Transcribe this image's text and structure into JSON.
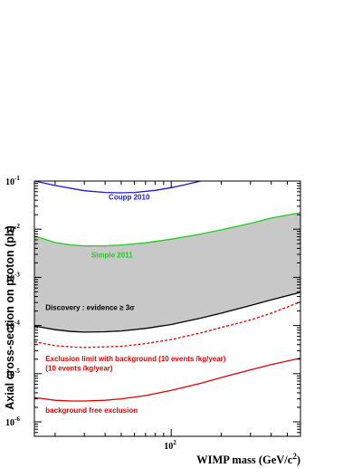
{
  "chart_data": {
    "type": "line",
    "title": "",
    "xlabel": "WIMP mass (GeV/c^2)",
    "xlabel_main": "WIMP mass (GeV/c",
    "xlabel_sup": "2",
    "xlabel_end": ")",
    "ylabel": "Axial cross-section on proton (pb)",
    "xscale": "log",
    "yscale": "log",
    "xlim": [
      15,
      600
    ],
    "ylim": [
      5e-07,
      0.1
    ],
    "grid": false,
    "legend": "none",
    "x_tick_labels": [
      {
        "x": 100,
        "base": "10",
        "exp": "2"
      }
    ],
    "y_tick_labels": [
      {
        "y": 1e-06,
        "base": "10",
        "exp": "-6"
      },
      {
        "y": 1e-05,
        "base": "10",
        "exp": "-5"
      },
      {
        "y": 0.0001,
        "base": "10",
        "exp": "-4"
      },
      {
        "y": 0.001,
        "base": "10",
        "exp": "-3"
      },
      {
        "y": 0.01,
        "base": "10",
        "exp": "-2"
      },
      {
        "y": 0.1,
        "base": "10",
        "exp": "-1"
      }
    ],
    "series": [
      {
        "name": "Coupp 2010",
        "color": "#1a1acc",
        "style": "solid",
        "points": [
          [
            15,
            0.1
          ],
          [
            20,
            0.081
          ],
          [
            30,
            0.063
          ],
          [
            40,
            0.058
          ],
          [
            50,
            0.057
          ],
          [
            60,
            0.058
          ],
          [
            80,
            0.064
          ],
          [
            100,
            0.073
          ],
          [
            120,
            0.083
          ],
          [
            140,
            0.094
          ],
          [
            150,
            0.1
          ]
        ]
      },
      {
        "name": "Simple 2011",
        "color": "#22cc22",
        "style": "solid",
        "points": [
          [
            15,
            0.0072
          ],
          [
            20,
            0.0053
          ],
          [
            25,
            0.0047
          ],
          [
            30,
            0.0045
          ],
          [
            40,
            0.0045
          ],
          [
            50,
            0.0047
          ],
          [
            70,
            0.0052
          ],
          [
            100,
            0.0062
          ],
          [
            150,
            0.0079
          ],
          [
            200,
            0.0097
          ],
          [
            300,
            0.0132
          ],
          [
            400,
            0.017
          ],
          [
            600,
            0.022
          ]
        ]
      },
      {
        "name": "Discovery : evidence ≥ 3σ",
        "color": "#000000",
        "style": "solid",
        "points": [
          [
            15,
            9.8e-05
          ],
          [
            20,
            8.2e-05
          ],
          [
            25,
            7.5e-05
          ],
          [
            30,
            7.3e-05
          ],
          [
            40,
            7.4e-05
          ],
          [
            50,
            7.7e-05
          ],
          [
            70,
            8.7e-05
          ],
          [
            100,
            0.000105
          ],
          [
            150,
            0.000142
          ],
          [
            200,
            0.00018
          ],
          [
            300,
            0.00026
          ],
          [
            400,
            0.00034
          ],
          [
            600,
            0.00049
          ]
        ]
      },
      {
        "name": "Exclusion limit with background (10 events /kg/year)",
        "color": "#dd0000",
        "style": "dashed",
        "points": [
          [
            15,
            4.6e-05
          ],
          [
            20,
            3.8e-05
          ],
          [
            25,
            3.6e-05
          ],
          [
            30,
            3.5e-05
          ],
          [
            40,
            3.6e-05
          ],
          [
            50,
            3.7e-05
          ],
          [
            70,
            4.2e-05
          ],
          [
            100,
            5.1e-05
          ],
          [
            150,
            7e-05
          ],
          [
            200,
            9.1e-05
          ],
          [
            300,
            0.00013
          ],
          [
            400,
            0.00018
          ],
          [
            600,
            0.00031
          ]
        ]
      },
      {
        "name": "background free exclusion",
        "color": "#dd0000",
        "style": "solid",
        "points": [
          [
            15,
            3.2e-06
          ],
          [
            20,
            2.8e-06
          ],
          [
            25,
            2.7e-06
          ],
          [
            30,
            2.7e-06
          ],
          [
            40,
            2.8e-06
          ],
          [
            50,
            3e-06
          ],
          [
            70,
            3.5e-06
          ],
          [
            100,
            4.5e-06
          ],
          [
            150,
            6.3e-06
          ],
          [
            200,
            8.3e-06
          ],
          [
            300,
            1.2e-05
          ],
          [
            400,
            1.55e-05
          ],
          [
            600,
            2.1e-05
          ]
        ]
      }
    ],
    "shaded_region": {
      "between": [
        "Discovery : evidence ≥ 3σ",
        "Simple 2011"
      ],
      "color": "#c8c8c8"
    },
    "annotations": [
      {
        "name": "coupp-label",
        "text": "Coupp 2010",
        "x": 42,
        "y": 0.041,
        "color": "#1a1acc"
      },
      {
        "name": "simple-label",
        "text": "Simple 2011",
        "x": 33,
        "y": 0.0026,
        "color": "#22cc22"
      },
      {
        "name": "discovery-label",
        "text": "Discovery : evidence ≥ 3σ",
        "x": 17.5,
        "y": 0.00021,
        "color": "#000000"
      },
      {
        "name": "exclusion-bg-label-1",
        "text": "Exclusion limit with background (10 events /kg/year)",
        "x": 17.5,
        "y": 1.8e-05,
        "color": "#dd0000"
      },
      {
        "name": "exclusion-bg-label-2",
        "text": "(10 events /kg/year)",
        "x": 17.5,
        "y": 1.15e-05,
        "color": "#dd0000"
      },
      {
        "name": "bg-free-label",
        "text": "background free exclusion",
        "x": 17.5,
        "y": 1.55e-06,
        "color": "#dd0000"
      }
    ]
  }
}
